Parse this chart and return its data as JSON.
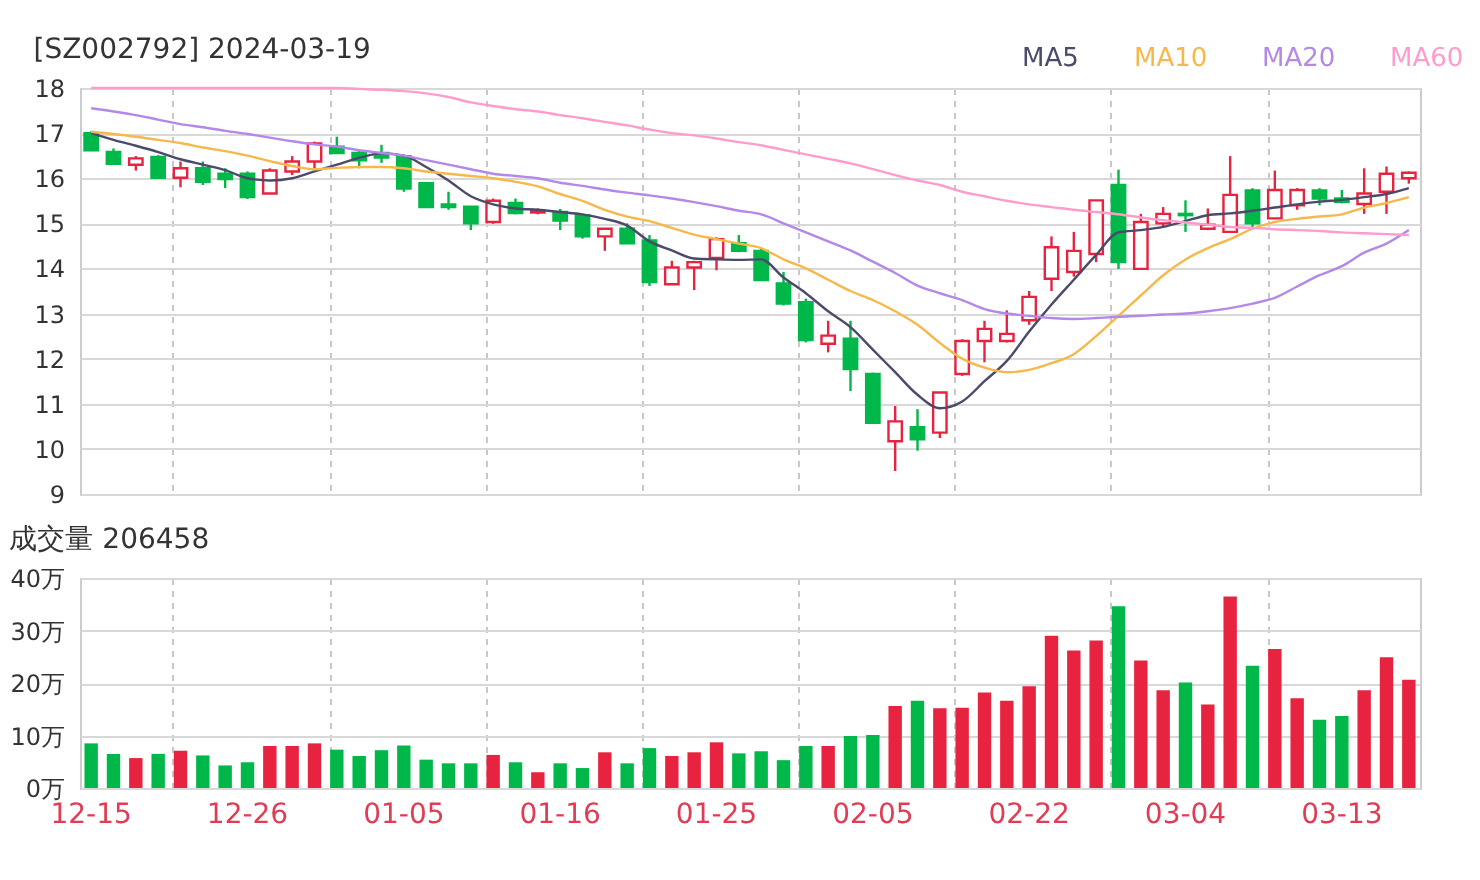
{
  "chart_data": [
    {
      "type": "candlestick",
      "title": "[SZ002792] 2024-03-19",
      "categories": [
        null,
        null,
        null,
        null,
        null,
        null,
        null,
        null,
        null,
        null,
        null,
        null,
        null,
        null,
        null,
        null,
        null,
        null,
        null,
        null,
        null,
        null,
        null,
        null,
        null,
        null,
        null,
        null,
        null,
        null,
        null,
        null,
        null,
        null,
        null,
        null,
        null,
        null,
        null,
        null,
        null,
        null,
        null,
        null,
        null,
        null,
        null,
        null,
        null,
        null,
        null,
        null,
        null,
        null,
        null,
        null,
        null,
        null,
        null,
        null
      ],
      "ohlc": [
        [
          17.0,
          17.04,
          16.6,
          16.62
        ],
        [
          16.58,
          16.66,
          16.3,
          16.32
        ],
        [
          16.3,
          16.49,
          16.17,
          16.44
        ],
        [
          16.47,
          16.51,
          16.0,
          16.01
        ],
        [
          16.01,
          16.37,
          15.8,
          16.22
        ],
        [
          16.22,
          16.37,
          15.85,
          15.92
        ],
        [
          16.1,
          16.22,
          15.78,
          15.98
        ],
        [
          16.1,
          16.15,
          15.54,
          15.58
        ],
        [
          15.66,
          16.22,
          15.66,
          16.17
        ],
        [
          16.15,
          16.49,
          16.07,
          16.37
        ],
        [
          16.37,
          16.81,
          16.22,
          16.77
        ],
        [
          16.7,
          16.92,
          16.54,
          16.56
        ],
        [
          16.56,
          16.63,
          16.22,
          16.4
        ],
        [
          16.56,
          16.74,
          16.34,
          16.46
        ],
        [
          16.49,
          16.52,
          15.7,
          15.77
        ],
        [
          15.89,
          15.89,
          15.36,
          15.36
        ],
        [
          15.42,
          15.7,
          15.3,
          15.36
        ],
        [
          15.37,
          15.38,
          14.85,
          15.0
        ],
        [
          15.03,
          15.55,
          14.99,
          15.5
        ],
        [
          15.45,
          15.55,
          15.2,
          15.23
        ],
        [
          15.24,
          15.33,
          15.2,
          15.27
        ],
        [
          15.25,
          15.32,
          14.85,
          15.06
        ],
        [
          15.18,
          15.21,
          14.66,
          14.71
        ],
        [
          14.71,
          14.88,
          14.39,
          14.88
        ],
        [
          14.88,
          15.0,
          14.56,
          14.56
        ],
        [
          14.62,
          14.74,
          13.61,
          13.7
        ],
        [
          13.65,
          14.17,
          13.65,
          14.02
        ],
        [
          14.02,
          14.17,
          13.52,
          14.14
        ],
        [
          14.23,
          14.69,
          13.96,
          14.65
        ],
        [
          14.56,
          14.74,
          14.36,
          14.39
        ],
        [
          14.39,
          14.44,
          13.72,
          13.74
        ],
        [
          13.67,
          13.92,
          13.18,
          13.22
        ],
        [
          13.25,
          13.33,
          12.36,
          12.41
        ],
        [
          12.33,
          12.84,
          12.14,
          12.51
        ],
        [
          12.44,
          12.84,
          11.28,
          11.77
        ],
        [
          11.66,
          11.69,
          10.55,
          10.58
        ],
        [
          10.17,
          10.95,
          9.51,
          10.61
        ],
        [
          10.48,
          10.88,
          9.96,
          10.21
        ],
        [
          10.36,
          11.25,
          10.24,
          11.25
        ],
        [
          11.66,
          12.43,
          11.62,
          12.39
        ],
        [
          12.39,
          12.84,
          11.92,
          12.66
        ],
        [
          12.39,
          13.07,
          12.36,
          12.55
        ],
        [
          12.85,
          13.5,
          12.75,
          13.37
        ],
        [
          13.77,
          14.71,
          13.5,
          14.47
        ],
        [
          13.92,
          14.81,
          13.82,
          14.39
        ],
        [
          14.32,
          15.51,
          14.14,
          15.51
        ],
        [
          15.85,
          16.19,
          13.99,
          14.14
        ],
        [
          13.99,
          15.21,
          13.99,
          15.03
        ],
        [
          15.0,
          15.36,
          14.91,
          15.21
        ],
        [
          15.21,
          15.51,
          14.81,
          15.18
        ],
        [
          14.88,
          15.33,
          14.85,
          14.97
        ],
        [
          14.81,
          16.49,
          14.81,
          15.63
        ],
        [
          15.73,
          15.78,
          14.88,
          15.0
        ],
        [
          15.11,
          16.17,
          15.11,
          15.74
        ],
        [
          15.4,
          15.78,
          15.3,
          15.74
        ],
        [
          15.73,
          15.78,
          15.4,
          15.55
        ],
        [
          15.55,
          15.74,
          15.44,
          15.48
        ],
        [
          15.43,
          16.22,
          15.21,
          15.66
        ],
        [
          15.7,
          16.26,
          15.21,
          16.1
        ],
        [
          16.0,
          16.15,
          15.88,
          16.12
        ]
      ],
      "colors": [
        "#00b74a",
        "#00b74a",
        "#e8233f",
        "#00b74a",
        "#e8233f",
        "#00b74a",
        "#00b74a",
        "#00b74a",
        "#e8233f",
        "#e8233f",
        "#e8233f",
        "#00b74a",
        "#00b74a",
        "#00b74a",
        "#00b74a",
        "#00b74a",
        "#00b74a",
        "#00b74a",
        "#e8233f",
        "#00b74a",
        "#e8233f",
        "#00b74a",
        "#00b74a",
        "#e8233f",
        "#00b74a",
        "#00b74a",
        "#e8233f",
        "#e8233f",
        "#e8233f",
        "#00b74a",
        "#00b74a",
        "#00b74a",
        "#00b74a",
        "#e8233f",
        "#00b74a",
        "#00b74a",
        "#e8233f",
        "#00b74a",
        "#e8233f",
        "#e8233f",
        "#e8233f",
        "#e8233f",
        "#e8233f",
        "#e8233f",
        "#e8233f",
        "#e8233f",
        "#00b74a",
        "#e8233f",
        "#e8233f",
        "#00b74a",
        "#e8233f",
        "#e8233f",
        "#00b74a",
        "#e8233f",
        "#e8233f",
        "#00b74a",
        "#00b74a",
        "#e8233f",
        "#e8233f",
        "#e8233f"
      ],
      "series": [
        {
          "name": "MA5",
          "type": "line",
          "color": "#4a4a6a",
          "values": [
            17.0,
            16.85,
            16.72,
            16.58,
            16.42,
            16.3,
            16.18,
            16.0,
            15.95,
            16.0,
            16.15,
            16.3,
            16.45,
            16.55,
            16.5,
            16.25,
            15.95,
            15.6,
            15.42,
            15.33,
            15.3,
            15.25,
            15.2,
            15.1,
            14.95,
            14.6,
            14.4,
            14.22,
            14.2,
            14.19,
            14.2,
            13.8,
            13.45,
            13.05,
            12.7,
            12.2,
            11.7,
            11.2,
            10.9,
            11.05,
            11.5,
            11.95,
            12.6,
            13.2,
            13.75,
            14.3,
            14.8,
            14.85,
            14.92,
            15.05,
            15.18,
            15.22,
            15.28,
            15.35,
            15.42,
            15.48,
            15.52,
            15.58,
            15.65,
            15.78
          ]
        },
        {
          "name": "MA10",
          "type": "line",
          "color": "#f7b84b",
          "values": [
            17.03,
            16.98,
            16.92,
            16.85,
            16.78,
            16.68,
            16.6,
            16.5,
            16.38,
            16.27,
            16.2,
            16.23,
            16.25,
            16.25,
            16.22,
            16.15,
            16.1,
            16.05,
            16.0,
            15.92,
            15.82,
            15.65,
            15.5,
            15.3,
            15.15,
            15.05,
            14.9,
            14.75,
            14.65,
            14.55,
            14.45,
            14.2,
            14.0,
            13.75,
            13.5,
            13.3,
            13.05,
            12.75,
            12.35,
            12.0,
            11.8,
            11.7,
            11.75,
            11.9,
            12.1,
            12.5,
            12.95,
            13.4,
            13.85,
            14.2,
            14.45,
            14.65,
            14.88,
            15.03,
            15.1,
            15.15,
            15.2,
            15.35,
            15.45,
            15.58
          ]
        },
        {
          "name": "MA20",
          "type": "line",
          "color": "#b388e8",
          "values": [
            17.55,
            17.48,
            17.4,
            17.3,
            17.2,
            17.13,
            17.05,
            16.98,
            16.9,
            16.82,
            16.75,
            16.7,
            16.62,
            16.56,
            16.5,
            16.4,
            16.3,
            16.2,
            16.1,
            16.05,
            16.0,
            15.9,
            15.83,
            15.75,
            15.68,
            15.62,
            15.55,
            15.47,
            15.38,
            15.28,
            15.2,
            15.0,
            14.8,
            14.6,
            14.4,
            14.15,
            13.9,
            13.62,
            13.45,
            13.3,
            13.1,
            13.0,
            12.95,
            12.9,
            12.88,
            12.9,
            12.93,
            12.95,
            12.98,
            13.0,
            13.05,
            13.12,
            13.22,
            13.35,
            13.6,
            13.85,
            14.05,
            14.35,
            14.55,
            14.85
          ]
        },
        {
          "name": "MA60",
          "type": "line",
          "color": "#ff9cce",
          "values": [
            18.0,
            18.0,
            18.0,
            18.0,
            18.0,
            18.0,
            18.0,
            18.0,
            18.0,
            18.0,
            18.0,
            18.0,
            17.98,
            17.96,
            17.93,
            17.88,
            17.8,
            17.68,
            17.6,
            17.53,
            17.48,
            17.4,
            17.33,
            17.25,
            17.17,
            17.08,
            17.0,
            16.95,
            16.88,
            16.8,
            16.73,
            16.63,
            16.53,
            16.43,
            16.33,
            16.2,
            16.07,
            15.95,
            15.85,
            15.7,
            15.6,
            15.5,
            15.42,
            15.36,
            15.3,
            15.25,
            15.2,
            15.13,
            15.07,
            15.02,
            14.97,
            14.92,
            14.9,
            14.87,
            14.85,
            14.83,
            14.8,
            14.78,
            14.76,
            14.74
          ]
        }
      ],
      "ylim": [
        9,
        18
      ],
      "yticks": [
        9,
        10,
        11,
        12,
        13,
        14,
        15,
        16,
        17,
        18
      ],
      "grid": true,
      "legend": "top right",
      "tick_labels": "y"
    },
    {
      "type": "bar",
      "title": "成交量 206458",
      "categories": [
        "12-15",
        null,
        null,
        null,
        null,
        null,
        null,
        "12-26",
        null,
        null,
        null,
        null,
        null,
        null,
        "01-05",
        null,
        null,
        null,
        null,
        null,
        null,
        "01-16",
        null,
        null,
        null,
        null,
        null,
        null,
        "01-25",
        null,
        null,
        null,
        null,
        null,
        null,
        "02-05",
        null,
        null,
        null,
        null,
        null,
        null,
        "02-22",
        null,
        null,
        null,
        null,
        null,
        null,
        "03-04",
        null,
        null,
        null,
        null,
        null,
        null,
        "03-13",
        null,
        null,
        null
      ],
      "values": [
        8.5,
        6.5,
        5.7,
        6.5,
        7.1,
        6.2,
        4.3,
        4.9,
        8.0,
        8.0,
        8.5,
        7.3,
        6.1,
        7.2,
        8.1,
        5.4,
        4.7,
        4.7,
        6.3,
        4.9,
        3.0,
        4.7,
        3.8,
        6.8,
        4.7,
        7.6,
        6.1,
        6.8,
        8.7,
        6.6,
        7.0,
        5.3,
        8.0,
        8.0,
        9.9,
        10.1,
        15.6,
        16.6,
        15.2,
        15.3,
        18.2,
        16.6,
        19.4,
        29.0,
        26.2,
        28.1,
        34.6,
        24.3,
        18.6,
        20.1,
        15.9,
        36.5,
        23.3,
        26.5,
        17.1,
        13.0,
        13.7,
        18.6,
        24.9,
        20.6
      ],
      "colors": [
        "#00b74a",
        "#00b74a",
        "#e8233f",
        "#00b74a",
        "#e8233f",
        "#00b74a",
        "#00b74a",
        "#00b74a",
        "#e8233f",
        "#e8233f",
        "#e8233f",
        "#00b74a",
        "#00b74a",
        "#00b74a",
        "#00b74a",
        "#00b74a",
        "#00b74a",
        "#00b74a",
        "#e8233f",
        "#00b74a",
        "#e8233f",
        "#00b74a",
        "#00b74a",
        "#e8233f",
        "#00b74a",
        "#00b74a",
        "#e8233f",
        "#e8233f",
        "#e8233f",
        "#00b74a",
        "#00b74a",
        "#00b74a",
        "#00b74a",
        "#e8233f",
        "#00b74a",
        "#00b74a",
        "#e8233f",
        "#00b74a",
        "#e8233f",
        "#e8233f",
        "#e8233f",
        "#e8233f",
        "#e8233f",
        "#e8233f",
        "#e8233f",
        "#e8233f",
        "#00b74a",
        "#e8233f",
        "#e8233f",
        "#00b74a",
        "#e8233f",
        "#e8233f",
        "#00b74a",
        "#e8233f",
        "#e8233f",
        "#00b74a",
        "#00b74a",
        "#e8233f",
        "#e8233f",
        "#e8233f"
      ],
      "ylim": [
        0,
        40
      ],
      "yticks": [
        {
          "value": 0,
          "label": "0万"
        },
        {
          "value": 10,
          "label": "10万"
        },
        {
          "value": 20,
          "label": "20万"
        },
        {
          "value": 30,
          "label": "30万"
        },
        {
          "value": 40,
          "label": "40万"
        }
      ],
      "grid": true
    }
  ]
}
